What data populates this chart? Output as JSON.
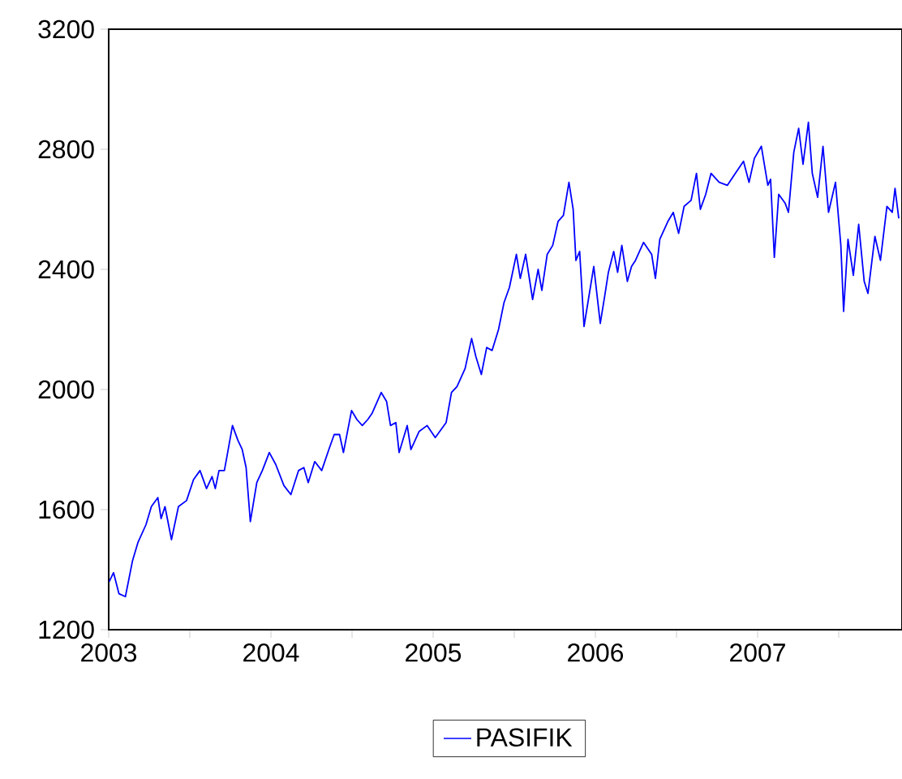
{
  "chart_data": {
    "type": "line",
    "x": [
      2003.003,
      2003.03,
      2003.063,
      2003.103,
      2003.147,
      2003.18,
      2003.23,
      2003.263,
      2003.303,
      2003.323,
      2003.347,
      2003.387,
      2003.43,
      2003.48,
      2003.523,
      2003.563,
      2003.603,
      2003.637,
      2003.657,
      2003.68,
      2003.713,
      2003.73,
      2003.763,
      2003.797,
      2003.823,
      2003.847,
      2003.873,
      2003.913,
      2003.947,
      2003.99,
      2004.03,
      2004.08,
      2004.123,
      2004.17,
      2004.203,
      2004.23,
      2004.27,
      2004.313,
      2004.357,
      2004.39,
      2004.423,
      2004.447,
      2004.497,
      2004.53,
      2004.563,
      2004.597,
      2004.623,
      2004.68,
      2004.713,
      2004.737,
      2004.77,
      2004.79,
      2004.84,
      2004.863,
      2004.913,
      2004.963,
      2005.013,
      2005.08,
      2005.113,
      2005.147,
      2005.197,
      2005.237,
      2005.263,
      2005.297,
      2005.33,
      2005.363,
      2005.403,
      2005.437,
      2005.47,
      2005.513,
      2005.537,
      2005.57,
      2005.613,
      2005.647,
      2005.67,
      2005.703,
      2005.737,
      2005.77,
      2005.803,
      2005.837,
      2005.863,
      2005.88,
      2005.903,
      2005.93,
      2005.957,
      2005.99,
      2006.03,
      2006.057,
      2006.08,
      2006.113,
      2006.137,
      2006.163,
      2006.197,
      2006.223,
      2006.247,
      2006.297,
      2006.347,
      2006.37,
      2006.397,
      2006.447,
      2006.48,
      2006.513,
      2006.547,
      2006.59,
      2006.623,
      2006.647,
      2006.68,
      2006.713,
      2006.763,
      2006.813,
      2006.863,
      2006.913,
      2006.947,
      2006.98,
      2007.023,
      2007.063,
      2007.08,
      2007.103,
      2007.13,
      2007.17,
      2007.19,
      2007.223,
      2007.253,
      2007.28,
      2007.313,
      2007.337,
      2007.37,
      2007.403,
      2007.437,
      2007.48,
      2007.513,
      2007.53,
      2007.557,
      2007.59,
      2007.623,
      2007.657,
      2007.68,
      2007.723,
      2007.757,
      2007.797,
      2007.83,
      2007.847,
      2007.87
    ],
    "series": [
      {
        "name": "PASIFIK",
        "color": "#0000ff",
        "values": [
          1360,
          1390,
          1320,
          1310,
          1430,
          1490,
          1550,
          1610,
          1640,
          1570,
          1610,
          1500,
          1610,
          1630,
          1700,
          1730,
          1670,
          1710,
          1670,
          1730,
          1730,
          1780,
          1880,
          1830,
          1800,
          1740,
          1560,
          1690,
          1730,
          1790,
          1750,
          1680,
          1650,
          1730,
          1740,
          1690,
          1760,
          1730,
          1800,
          1850,
          1850,
          1790,
          1930,
          1900,
          1880,
          1900,
          1920,
          1990,
          1960,
          1880,
          1890,
          1790,
          1880,
          1800,
          1860,
          1880,
          1840,
          1890,
          1990,
          2010,
          2070,
          2170,
          2110,
          2050,
          2140,
          2130,
          2200,
          2290,
          2340,
          2450,
          2370,
          2450,
          2300,
          2400,
          2330,
          2450,
          2480,
          2560,
          2580,
          2690,
          2600,
          2430,
          2460,
          2210,
          2300,
          2410,
          2220,
          2310,
          2390,
          2460,
          2390,
          2480,
          2360,
          2410,
          2430,
          2490,
          2450,
          2370,
          2500,
          2560,
          2590,
          2520,
          2610,
          2630,
          2720,
          2600,
          2650,
          2720,
          2690,
          2680,
          2720,
          2760,
          2690,
          2770,
          2810,
          2680,
          2700,
          2440,
          2650,
          2620,
          2590,
          2790,
          2870,
          2750,
          2890,
          2720,
          2640,
          2810,
          2590,
          2690,
          2480,
          2260,
          2500,
          2380,
          2550,
          2360,
          2320,
          2510,
          2430,
          2610,
          2590,
          2670,
          2570
        ]
      }
    ],
    "xlim": [
      2003,
      2007.89
    ],
    "xticks": [
      2003,
      {
        "value": 2003.5,
        "label": null
      },
      2004,
      {
        "value": 2004.5,
        "label": null
      },
      2005,
      {
        "value": 2005.5,
        "label": null
      },
      2006,
      {
        "value": 2006.5,
        "label": null
      },
      2007,
      {
        "value": 2007.5,
        "label": null
      }
    ],
    "ylim": [
      1200,
      3200
    ],
    "yticks": [
      1200,
      1600,
      2000,
      2400,
      2800,
      3200
    ],
    "legend": "bottom",
    "grid": false,
    "marker": "none",
    "line_style": "solid"
  }
}
